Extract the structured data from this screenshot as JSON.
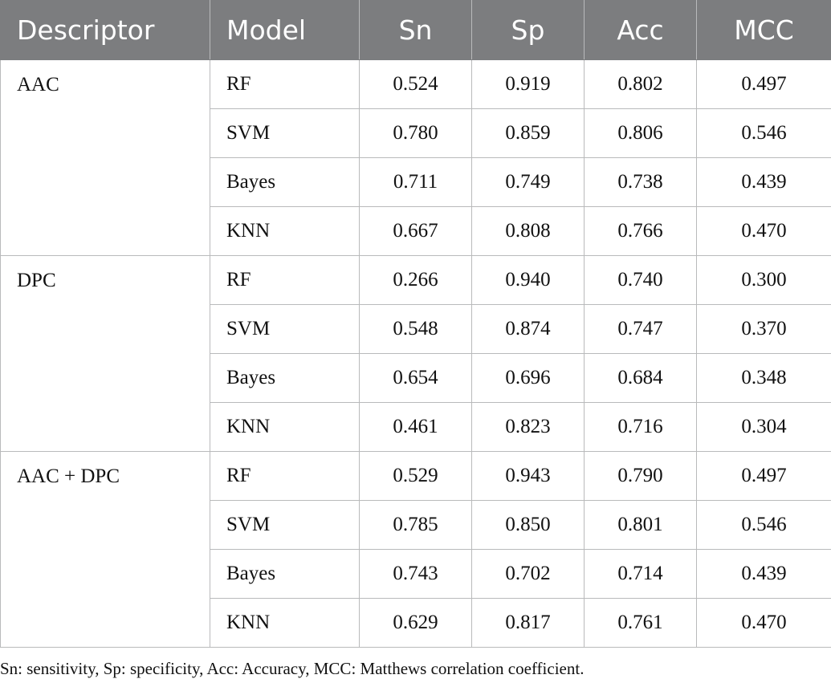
{
  "table": {
    "headers": [
      "Descriptor",
      "Model",
      "Sn",
      "Sp",
      "Acc",
      "MCC"
    ],
    "groups": [
      {
        "descriptor": "AAC",
        "rows": [
          {
            "model": "RF",
            "sn": "0.524",
            "sp": "0.919",
            "acc": "0.802",
            "mcc": "0.497"
          },
          {
            "model": "SVM",
            "sn": "0.780",
            "sp": "0.859",
            "acc": "0.806",
            "mcc": "0.546"
          },
          {
            "model": "Bayes",
            "sn": "0.711",
            "sp": "0.749",
            "acc": "0.738",
            "mcc": "0.439"
          },
          {
            "model": "KNN",
            "sn": "0.667",
            "sp": "0.808",
            "acc": "0.766",
            "mcc": "0.470"
          }
        ]
      },
      {
        "descriptor": "DPC",
        "rows": [
          {
            "model": "RF",
            "sn": "0.266",
            "sp": "0.940",
            "acc": "0.740",
            "mcc": "0.300"
          },
          {
            "model": "SVM",
            "sn": "0.548",
            "sp": "0.874",
            "acc": "0.747",
            "mcc": "0.370"
          },
          {
            "model": "Bayes",
            "sn": "0.654",
            "sp": "0.696",
            "acc": "0.684",
            "mcc": "0.348"
          },
          {
            "model": "KNN",
            "sn": "0.461",
            "sp": "0.823",
            "acc": "0.716",
            "mcc": "0.304"
          }
        ]
      },
      {
        "descriptor": "AAC + DPC",
        "rows": [
          {
            "model": "RF",
            "sn": "0.529",
            "sp": "0.943",
            "acc": "0.790",
            "mcc": "0.497"
          },
          {
            "model": "SVM",
            "sn": "0.785",
            "sp": "0.850",
            "acc": "0.801",
            "mcc": "0.546"
          },
          {
            "model": "Bayes",
            "sn": "0.743",
            "sp": "0.702",
            "acc": "0.714",
            "mcc": "0.439"
          },
          {
            "model": "KNN",
            "sn": "0.629",
            "sp": "0.817",
            "acc": "0.761",
            "mcc": "0.470"
          }
        ]
      }
    ]
  },
  "footnote": "Sn: sensitivity, Sp: specificity, Acc: Accuracy, MCC: Matthews correlation coefficient.",
  "colors": {
    "header_bg": "#7c7d7f",
    "header_text": "#ffffff",
    "grid_line": "#b9babb",
    "body_text": "#111111"
  }
}
